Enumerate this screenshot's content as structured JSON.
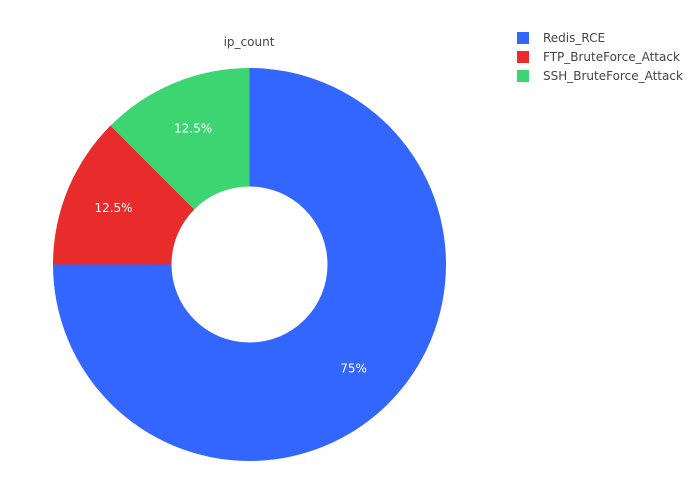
{
  "chart_data": {
    "type": "pie",
    "title": "ip_count",
    "hole": true,
    "legend_position": "top-right",
    "slices": [
      {
        "label": "Redis_RCE",
        "value": 75,
        "percent_label": "75%",
        "color": "#3366ff"
      },
      {
        "label": "FTP_BruteForce_Attack",
        "value": 12.5,
        "percent_label": "12.5%",
        "color": "#e82b2b"
      },
      {
        "label": "SSH_BruteForce_Attack",
        "value": 12.5,
        "percent_label": "12.5%",
        "color": "#3cd572"
      }
    ]
  }
}
